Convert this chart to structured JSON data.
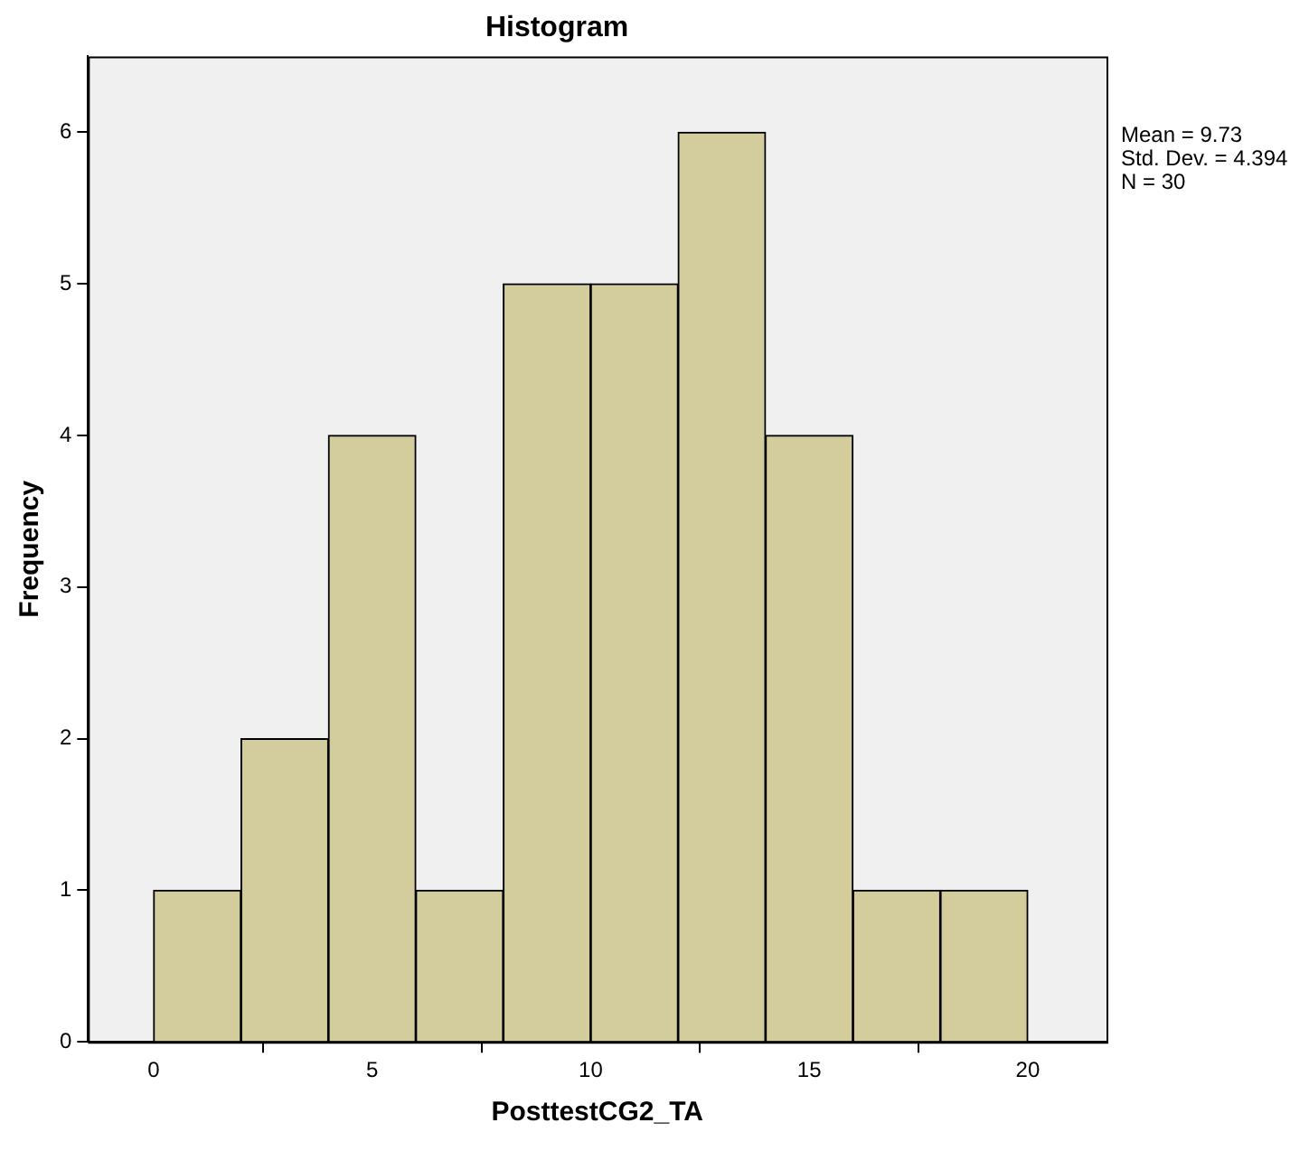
{
  "chart_data": {
    "type": "histogram",
    "title": "Histogram",
    "xlabel": "PosttestCG2_TA",
    "ylabel": "Frequency",
    "bins": [
      0,
      2,
      4,
      6,
      8,
      10,
      12,
      14,
      16,
      18,
      20
    ],
    "values": [
      1,
      2,
      4,
      1,
      5,
      5,
      6,
      4,
      1,
      1
    ],
    "color": "#d3cc9c",
    "xlim": [
      -1.5,
      21.8
    ],
    "xticks": [
      0,
      5,
      10,
      15,
      20
    ],
    "ylim": [
      0,
      6.5
    ],
    "yticks": [
      0,
      1,
      2,
      3,
      4,
      5,
      6
    ],
    "annotations": [
      "Mean = 9.73",
      "Std. Dev. = 4.394",
      "N = 30"
    ],
    "grid": false,
    "legend": false
  }
}
